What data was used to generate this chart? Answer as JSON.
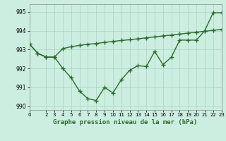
{
  "x": [
    0,
    1,
    2,
    3,
    4,
    5,
    6,
    7,
    8,
    9,
    10,
    11,
    12,
    13,
    14,
    15,
    16,
    17,
    18,
    19,
    20,
    21,
    22,
    23
  ],
  "series1": [
    993.3,
    992.8,
    992.6,
    992.6,
    992.0,
    991.5,
    990.8,
    990.4,
    990.3,
    991.0,
    990.7,
    991.4,
    991.9,
    992.15,
    992.1,
    992.9,
    992.2,
    992.6,
    993.5,
    993.5,
    993.5,
    994.0,
    994.95,
    994.95
  ],
  "series2": [
    993.3,
    992.8,
    992.6,
    992.6,
    993.05,
    993.15,
    993.22,
    993.28,
    993.32,
    993.38,
    993.43,
    993.48,
    993.52,
    993.57,
    993.62,
    993.67,
    993.72,
    993.77,
    993.82,
    993.87,
    993.92,
    993.97,
    994.02,
    994.07
  ],
  "ylim": [
    989.8,
    995.4
  ],
  "xlim": [
    0,
    23
  ],
  "yticks": [
    990,
    991,
    992,
    993,
    994,
    995
  ],
  "xticks": [
    0,
    2,
    3,
    4,
    5,
    6,
    7,
    8,
    9,
    10,
    11,
    12,
    13,
    14,
    15,
    16,
    17,
    18,
    19,
    20,
    21,
    22,
    23
  ],
  "line_color": "#2d6a2d",
  "bg_color": "#cceee0",
  "grid_color": "#aad4c0",
  "xlabel": "Graphe pression niveau de la mer (hPa)",
  "marker": "+",
  "marker_size": 4,
  "line_width": 1.0
}
